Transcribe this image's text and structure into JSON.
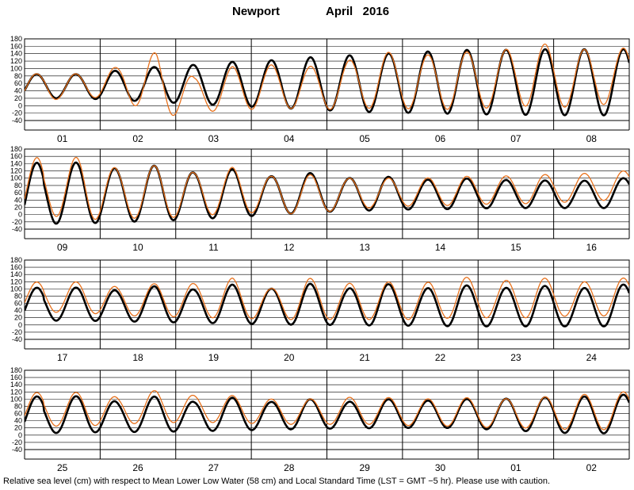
{
  "title": {
    "station": "Newport",
    "month": "April   2016"
  },
  "footnote": "Relative sea level (cm) with respect to Mean Lower Low Water (58 cm) and Local Standard Time (LST = GMT −5 hr). Please use with caution.",
  "colors": {
    "predicted": "#000000",
    "observed": "#e8711c",
    "grid": "#000000"
  },
  "chart_data": [
    {
      "type": "line",
      "panel": 1,
      "x_unit": "day",
      "categories": [
        "01",
        "02",
        "03",
        "04",
        "05",
        "06",
        "07",
        "08"
      ],
      "ylim": [
        -40,
        180
      ],
      "yticks": [
        -40,
        -20,
        0,
        20,
        40,
        60,
        80,
        100,
        120,
        140,
        160,
        180
      ],
      "grid": true,
      "series": [
        {
          "role": "predicted",
          "highs": [
            85,
            85,
            95,
            105,
            110,
            118,
            122,
            130,
            135,
            140,
            145,
            150,
            150,
            152,
            152,
            152
          ],
          "lows": [
            20,
            20,
            15,
            10,
            5,
            0,
            -5,
            -10,
            -15,
            -18,
            -20,
            -22,
            -24,
            -25,
            -26,
            -26
          ]
        },
        {
          "role": "observed",
          "highs": [
            90,
            85,
            105,
            145,
            75,
            105,
            110,
            105,
            120,
            145,
            135,
            145,
            145,
            172,
            150,
            155
          ],
          "lows": [
            15,
            20,
            25,
            -35,
            -15,
            -15,
            -5,
            -10,
            -10,
            -5,
            -10,
            -10,
            -5,
            0,
            -5,
            5
          ]
        }
      ]
    },
    {
      "type": "line",
      "panel": 2,
      "x_unit": "day",
      "categories": [
        "09",
        "10",
        "11",
        "12",
        "13",
        "14",
        "15",
        "16"
      ],
      "ylim": [
        -40,
        180
      ],
      "yticks": [
        -40,
        -20,
        0,
        20,
        40,
        60,
        80,
        100,
        120,
        140,
        160,
        180
      ],
      "grid": true,
      "series": [
        {
          "role": "predicted",
          "highs": [
            130,
            145,
            125,
            135,
            115,
            125,
            105,
            115,
            100,
            105,
            95,
            100,
            95,
            95,
            90,
            100
          ],
          "lows": [
            -25,
            -25,
            -20,
            -18,
            -12,
            -8,
            0,
            5,
            10,
            12,
            15,
            15,
            18,
            18,
            18,
            18
          ]
        },
        {
          "role": "observed",
          "highs": [
            140,
            160,
            125,
            135,
            115,
            130,
            105,
            110,
            100,
            100,
            100,
            105,
            105,
            110,
            110,
            120
          ],
          "lows": [
            0,
            -15,
            -10,
            -10,
            -5,
            5,
            5,
            0,
            15,
            20,
            25,
            25,
            30,
            30,
            35,
            40
          ]
        }
      ]
    },
    {
      "type": "line",
      "panel": 3,
      "x_unit": "day",
      "categories": [
        "17",
        "18",
        "19",
        "20",
        "21",
        "22",
        "23",
        "24"
      ],
      "ylim": [
        -40,
        180
      ],
      "yticks": [
        -40,
        -20,
        0,
        20,
        40,
        60,
        80,
        100,
        120,
        140,
        160,
        180
      ],
      "grid": true,
      "series": [
        {
          "role": "predicted",
          "highs": [
            95,
            105,
            95,
            108,
            98,
            112,
            100,
            115,
            100,
            115,
            100,
            112,
            100,
            112,
            98,
            112
          ],
          "lows": [
            12,
            12,
            10,
            8,
            6,
            4,
            2,
            0,
            0,
            -2,
            -2,
            -4,
            -4,
            -4,
            -4,
            -4
          ]
        },
        {
          "role": "observed",
          "highs": [
            115,
            120,
            105,
            115,
            115,
            130,
            100,
            130,
            115,
            120,
            115,
            135,
            120,
            135,
            115,
            130
          ],
          "lows": [
            35,
            35,
            25,
            25,
            20,
            20,
            15,
            15,
            15,
            15,
            15,
            20,
            20,
            20,
            25,
            25
          ]
        }
      ]
    },
    {
      "type": "line",
      "panel": 4,
      "x_unit": "day",
      "categories": [
        "25",
        "26",
        "27",
        "28",
        "29",
        "30",
        "01",
        "02"
      ],
      "ylim": [
        -40,
        180
      ],
      "yticks": [
        -40,
        -20,
        0,
        20,
        40,
        60,
        80,
        100,
        120,
        140,
        160,
        180
      ],
      "grid": true,
      "series": [
        {
          "role": "predicted",
          "highs": [
            95,
            110,
            92,
            108,
            92,
            104,
            92,
            100,
            92,
            100,
            95,
            100,
            100,
            105,
            105,
            112
          ],
          "lows": [
            5,
            8,
            8,
            10,
            10,
            14,
            14,
            18,
            18,
            20,
            20,
            20,
            15,
            10,
            5,
            5
          ]
        },
        {
          "role": "observed",
          "highs": [
            110,
            120,
            105,
            125,
            110,
            110,
            100,
            100,
            105,
            105,
            100,
            105,
            100,
            105,
            110,
            120
          ],
          "lows": [
            25,
            25,
            30,
            35,
            35,
            35,
            30,
            30,
            30,
            30,
            25,
            25,
            20,
            20,
            15,
            15
          ]
        }
      ]
    }
  ]
}
